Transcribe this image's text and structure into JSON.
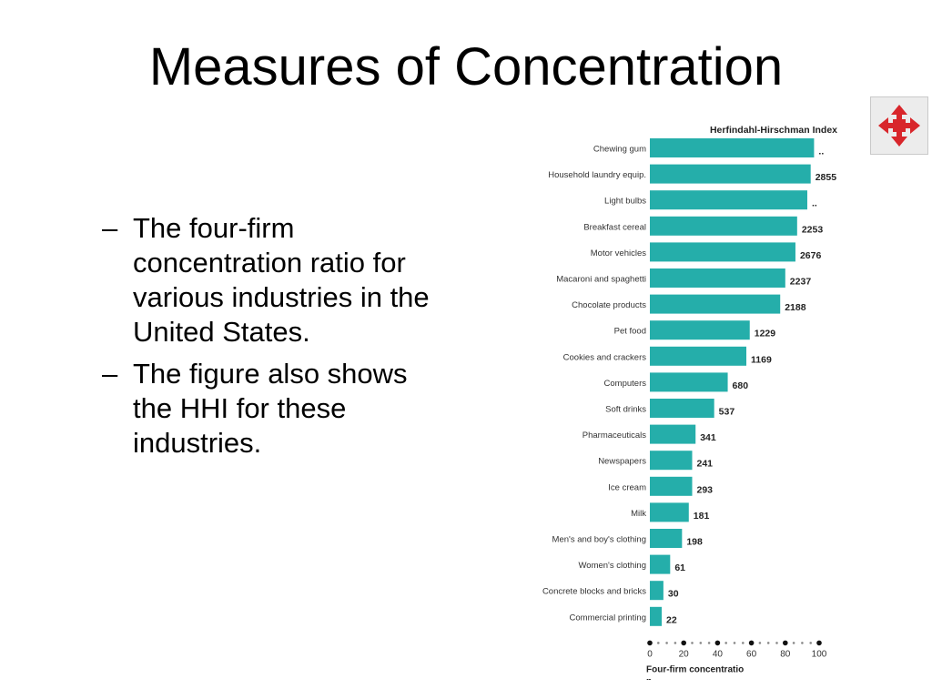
{
  "slide": {
    "title": "Measures of Concentration",
    "bullets": [
      {
        "dash": "–",
        "text": "The four-firm concentration ratio for various industries in the United States."
      },
      {
        "dash": "–",
        "text": "The figure also shows the HHI for these industries."
      }
    ]
  },
  "nav": {
    "icon": "expand-arrows-icon",
    "color": "#d8262b"
  },
  "chart_data": {
    "type": "bar",
    "orientation": "horizontal",
    "bar_color": "#25aeaa",
    "title": "Herfindahl-Hirschman Index",
    "xlabel": "Four-firm concentration ratio (percentage)",
    "xlim": [
      0,
      100
    ],
    "xticks": [
      0,
      20,
      40,
      60,
      80,
      100
    ],
    "categories": [
      "Chewing gum",
      "Household laundry equip.",
      "Light bulbs",
      "Breakfast cereal",
      "Motor vehicles",
      "Macaroni and spaghetti",
      "Chocolate products",
      "Pet food",
      "Cookies and crackers",
      "Computers",
      "Soft drinks",
      "Pharmaceuticals",
      "Newspapers",
      "Ice cream",
      "Milk",
      "Men's and boy's clothing",
      "Women's clothing",
      "Concrete blocks and bricks",
      "Commercial printing"
    ],
    "values": [
      97,
      95,
      93,
      87,
      86,
      80,
      77,
      59,
      57,
      46,
      38,
      27,
      25,
      25,
      23,
      19,
      12,
      8,
      7
    ],
    "hhi_labels": [
      "..",
      "2855",
      "..",
      "2253",
      "2676",
      "2237",
      "2188",
      "1229",
      "1169",
      "680",
      "537",
      "341",
      "241",
      "293",
      "181",
      "198",
      "61",
      "30",
      "22"
    ]
  }
}
